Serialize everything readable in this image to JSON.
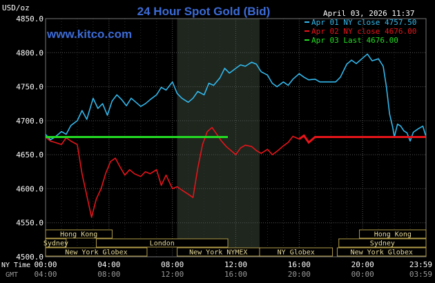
{
  "header": {
    "unit": "USD/oz",
    "title": "24 Hour Spot Gold (Bid)",
    "timestamp": "April 03, 2026 11:37",
    "website": "www.kitco.com"
  },
  "colors": {
    "background": "#000000",
    "plot": "#000000",
    "grid": "#555555",
    "shade": "#1e261e",
    "title": "#3c6bd6",
    "website": "#3c6bd6",
    "tick_text": "#ffffff",
    "sessions_fill": "#000000",
    "sessions_border": "#b29c48",
    "sessions_text": "#e8dc9c",
    "bottom_text": "#9a9a9a"
  },
  "chart_data": {
    "type": "line",
    "title": "24 Hour Spot Gold (Bid)",
    "ylabel": "USD/oz",
    "ylim": [
      4500,
      4850
    ],
    "yticks": [
      {
        "value": 4850,
        "label": "4850.0"
      },
      {
        "value": 4800,
        "label": "4800.0"
      },
      {
        "value": 4750,
        "label": "4750.0"
      },
      {
        "value": 4700,
        "label": "4700.0"
      },
      {
        "value": 4650,
        "label": "4650.0"
      },
      {
        "value": 4600,
        "label": "4600.0"
      },
      {
        "value": 4550,
        "label": "4550.0"
      },
      {
        "value": 4500,
        "label": "4500.0"
      }
    ],
    "xlim": [
      0,
      24
    ],
    "x_axis_label": "NY Time",
    "x_axis_label_2": "GMT",
    "xticks": [
      {
        "hour": 0,
        "ny": "00:00",
        "gmt": "04:00"
      },
      {
        "hour": 4,
        "ny": "04:00",
        "gmt": "08:00"
      },
      {
        "hour": 8,
        "ny": "08:00",
        "gmt": "12:00"
      },
      {
        "hour": 12,
        "ny": "12:00",
        "gmt": "16:00"
      },
      {
        "hour": 16,
        "ny": "16:00",
        "gmt": "20:00"
      },
      {
        "hour": 20,
        "ny": "20:00",
        "gmt": "00:00"
      },
      {
        "hour": 24,
        "ny": "23:59",
        "gmt": "03:59"
      }
    ],
    "shaded_hours": [
      8.3,
      13.5
    ],
    "legend_position": "top-right",
    "series": [
      {
        "name": "Apr 01 NY close 4757.50",
        "color": "#33b8ec",
        "x": [
          0,
          0.3,
          0.6,
          1.0,
          1.3,
          1.6,
          2.0,
          2.3,
          2.6,
          3.0,
          3.3,
          3.6,
          3.9,
          4.2,
          4.5,
          4.8,
          5.1,
          5.4,
          5.7,
          6.0,
          6.3,
          6.6,
          7.0,
          7.3,
          7.6,
          8.0,
          8.3,
          8.6,
          9.0,
          9.3,
          9.6,
          10.0,
          10.3,
          10.6,
          11.0,
          11.3,
          11.6,
          12.0,
          12.3,
          12.6,
          13.0,
          13.3,
          13.6,
          14.0,
          14.3,
          14.6,
          15.0,
          15.3,
          15.6,
          16.0,
          16.3,
          16.6,
          17.0,
          17.3,
          17.6,
          18.0,
          18.3,
          18.6,
          19.0,
          19.3,
          19.6,
          20.0,
          20.3,
          20.6,
          21.0,
          21.3,
          21.5,
          21.7,
          21.9,
          22.0,
          22.2,
          22.4,
          22.6,
          22.8,
          23.0,
          23.2,
          23.5,
          23.8,
          23.98
        ],
        "y": [
          4680,
          4672,
          4676,
          4684,
          4680,
          4693,
          4700,
          4715,
          4702,
          4733,
          4718,
          4725,
          4708,
          4729,
          4738,
          4731,
          4722,
          4733,
          4727,
          4721,
          4725,
          4731,
          4738,
          4749,
          4745,
          4757,
          4740,
          4733,
          4727,
          4733,
          4743,
          4738,
          4755,
          4752,
          4763,
          4777,
          4770,
          4777,
          4782,
          4780,
          4786,
          4783,
          4772,
          4767,
          4755,
          4750,
          4757,
          4752,
          4761,
          4769,
          4764,
          4760,
          4761,
          4757,
          4757,
          4757,
          4757,
          4764,
          4783,
          4789,
          4784,
          4792,
          4798,
          4788,
          4791,
          4780,
          4750,
          4710,
          4690,
          4676,
          4695,
          4692,
          4685,
          4682,
          4670,
          4683,
          4688,
          4692,
          4678
        ]
      },
      {
        "name": "Apr 02 NY close 4676.00",
        "color": "#e8141a",
        "x": [
          0,
          0.3,
          0.6,
          1.0,
          1.3,
          1.6,
          2.0,
          2.3,
          2.6,
          2.9,
          3.2,
          3.5,
          3.8,
          4.1,
          4.4,
          4.7,
          5.0,
          5.3,
          5.6,
          6.0,
          6.3,
          6.6,
          7.0,
          7.3,
          7.6,
          8.0,
          8.3,
          8.6,
          9.0,
          9.3,
          9.6,
          9.9,
          10.2,
          10.5,
          10.8,
          11.1,
          11.4,
          11.7,
          12.0,
          12.3,
          12.6,
          13.0,
          13.3,
          13.6,
          14.0,
          14.3,
          14.6,
          15.0,
          15.3,
          15.6,
          16.0,
          16.3,
          16.6,
          17.0,
          17.3,
          17.6,
          18.0,
          18.3,
          18.6,
          19.0,
          19.3,
          19.6,
          20.0,
          20.3,
          20.6,
          21.0,
          21.3,
          21.6,
          22.0,
          22.3,
          22.6,
          23.0,
          23.3,
          23.6,
          23.98
        ],
        "y": [
          4676,
          4670,
          4668,
          4665,
          4675,
          4670,
          4665,
          4622,
          4590,
          4558,
          4585,
          4600,
          4623,
          4640,
          4645,
          4632,
          4620,
          4628,
          4622,
          4618,
          4625,
          4622,
          4628,
          4605,
          4620,
          4600,
          4603,
          4598,
          4592,
          4587,
          4630,
          4665,
          4684,
          4690,
          4680,
          4670,
          4662,
          4656,
          4650,
          4660,
          4664,
          4662,
          4656,
          4652,
          4658,
          4650,
          4655,
          4663,
          4668,
          4677,
          4673,
          4678,
          4668,
          4676,
          4676,
          4676,
          4676,
          4676,
          4676,
          4676,
          4676,
          4676,
          4676,
          4676,
          4676,
          4676,
          4676,
          4676,
          4676,
          4676,
          4676,
          4676,
          4676,
          4676,
          4676
        ]
      },
      {
        "name": "Apr 03 Last 4676.00",
        "color": "#22dd22",
        "x": [
          0,
          11.5
        ],
        "y": [
          4676,
          4676
        ]
      }
    ]
  },
  "sessions": [
    {
      "label": "Hong Kong",
      "start": 0,
      "end": 4.2,
      "row": 0
    },
    {
      "label": "Hong Kong",
      "start": 19.8,
      "end": 24,
      "row": 0
    },
    {
      "label": "Sydney",
      "start": 0,
      "end": 1.3,
      "row": 1
    },
    {
      "label": "London",
      "start": 3.2,
      "end": 11.5,
      "row": 1
    },
    {
      "label": "Sydney",
      "start": 18.5,
      "end": 24,
      "row": 1
    },
    {
      "label": "New York Globex",
      "start": 0,
      "end": 6.4,
      "row": 2
    },
    {
      "label": "New York NYMEX",
      "start": 8.3,
      "end": 13.5,
      "row": 2
    },
    {
      "label": "NY Globex",
      "start": 13.5,
      "end": 18.1,
      "row": 2
    },
    {
      "label": "New York Globex",
      "start": 18.4,
      "end": 24,
      "row": 2
    }
  ]
}
